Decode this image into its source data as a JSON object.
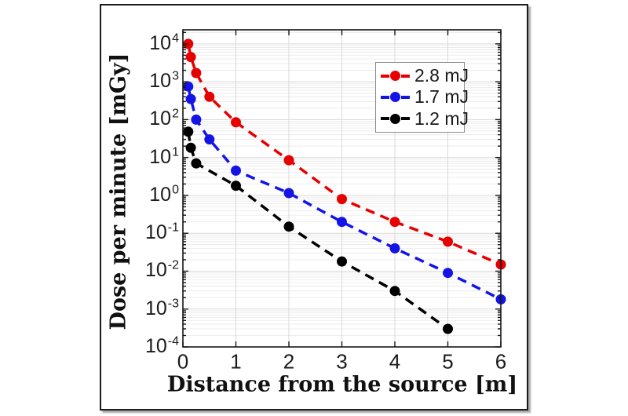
{
  "figure": {
    "background": "#ffffff",
    "frame_color": "#1c1c1c"
  },
  "chart_data": {
    "type": "line",
    "scale": "log-y",
    "xlabel": "Distance from the source [m]",
    "ylabel": "Dose per minute [mGy]",
    "xlim": [
      0,
      6
    ],
    "ylim_log10": [
      -4,
      4.37
    ],
    "x_ticks": [
      0,
      1,
      2,
      3,
      4,
      5,
      6
    ],
    "y_tick_exponents": [
      4,
      3,
      2,
      1,
      0,
      -1,
      -2,
      -3,
      -4
    ],
    "grid": true,
    "minor_grid": true,
    "legend_position": "upper right",
    "line_style": "dashed",
    "marker": "filled-circle",
    "colors": {
      "grid_major": "#d9d9d9",
      "grid_minor": "#ececec",
      "axis": "#151515",
      "tick_text": "#1a1a1a"
    },
    "series": [
      {
        "name": "2.8 mJ",
        "color": "#e60000",
        "x": [
          0.1,
          0.15,
          0.25,
          0.5,
          1,
          2,
          3,
          4,
          5,
          6
        ],
        "y": [
          10000,
          4500,
          1700,
          400,
          85,
          8.5,
          0.8,
          0.2,
          0.06,
          0.015
        ]
      },
      {
        "name": "1.7 mJ",
        "color": "#1414e6",
        "x": [
          0.1,
          0.15,
          0.25,
          0.5,
          1,
          2,
          3,
          4,
          5,
          6
        ],
        "y": [
          750,
          350,
          100,
          30,
          4.5,
          1.15,
          0.2,
          0.04,
          0.009,
          0.0018
        ]
      },
      {
        "name": "1.2 mJ",
        "color": "#000000",
        "x": [
          0.1,
          0.15,
          0.25,
          1,
          2,
          3,
          4,
          5
        ],
        "y": [
          48,
          18,
          7,
          1.8,
          0.15,
          0.018,
          0.003,
          0.0003
        ]
      }
    ]
  }
}
